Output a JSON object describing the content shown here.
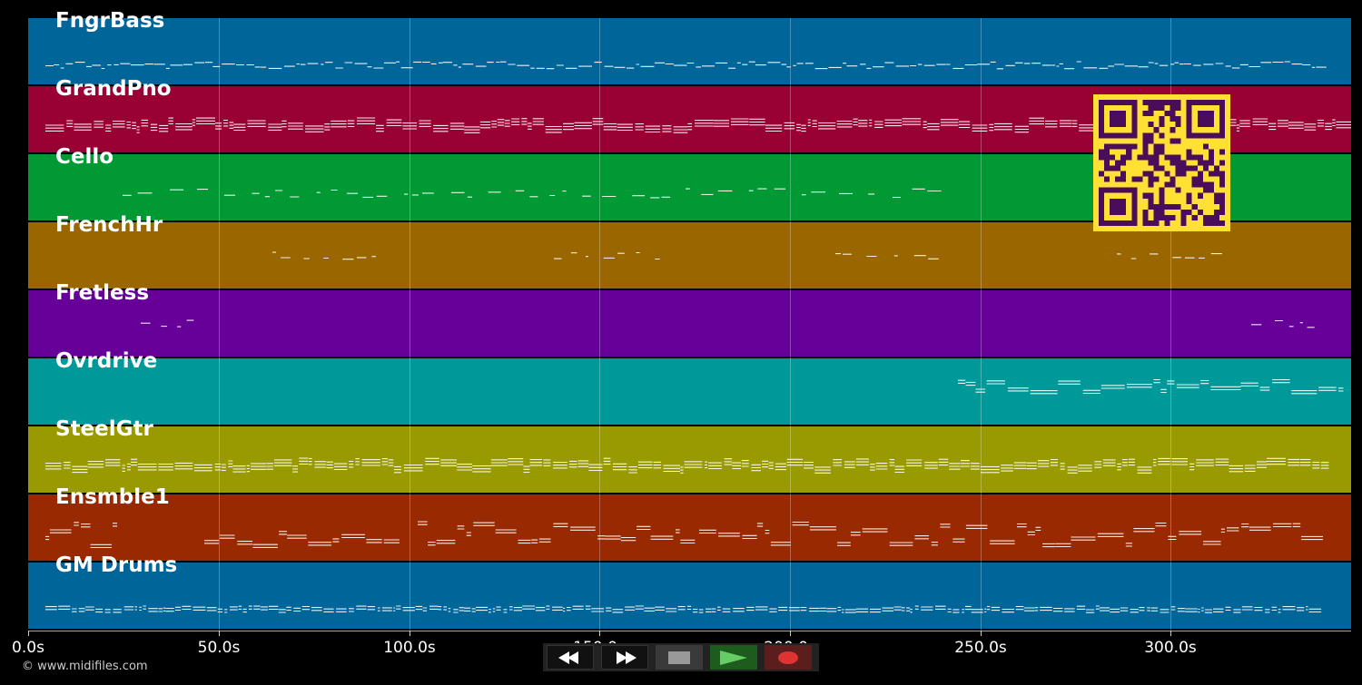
{
  "tracks": [
    {
      "name": "FngrBass",
      "color": "#006699"
    },
    {
      "name": "GrandPno",
      "color": "#990033"
    },
    {
      "name": "Cello",
      "color": "#009933"
    },
    {
      "name": "FrenchHr",
      "color": "#996600"
    },
    {
      "name": "Fretless",
      "color": "#660099"
    },
    {
      "name": "Ovrdrive",
      "color": "#009999"
    },
    {
      "name": "SteelGtr",
      "color": "#999900"
    },
    {
      "name": "Ensmble1",
      "color": "#992900"
    },
    {
      "name": "GM Drums",
      "color": "#006699"
    }
  ],
  "timeline": {
    "ticks": [
      "0.0s",
      "50.0s",
      "100.0s",
      "150.0s",
      "200.0s",
      "250.0s",
      "300.0s"
    ]
  },
  "footer": {
    "copyright": "© www.midifiles.com"
  },
  "controls": {
    "rewind_icon": "rewind-icon",
    "fast_forward_icon": "fast-forward-icon",
    "stop_icon": "stop-icon",
    "play_icon": "play-icon",
    "record_icon": "record-icon"
  },
  "qr_colors": {
    "fg": "#4a0d5c",
    "bg": "#ffe033"
  }
}
